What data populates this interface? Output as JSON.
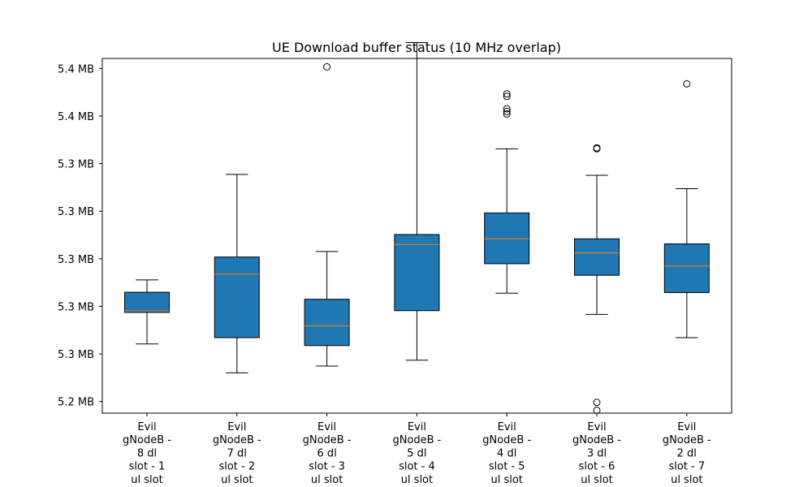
{
  "chart_data": {
    "type": "box",
    "title": "UE Download buffer status (10 MHz overlap)",
    "xlabel": "",
    "ylabel": "",
    "ylim": [
      5.2127,
      5.4363
    ],
    "grid": false,
    "y_ticks": [
      {
        "value": 5.22,
        "label": "5.2 MB"
      },
      {
        "value": 5.25,
        "label": "5.3 MB"
      },
      {
        "value": 5.28,
        "label": "5.3 MB"
      },
      {
        "value": 5.31,
        "label": "5.3 MB"
      },
      {
        "value": 5.34,
        "label": "5.3 MB"
      },
      {
        "value": 5.37,
        "label": "5.3 MB"
      },
      {
        "value": 5.4,
        "label": "5.4 MB"
      },
      {
        "value": 5.43,
        "label": "5.4 MB"
      }
    ],
    "categories": [
      [
        "Evil",
        "gNodeB -",
        "8 dl",
        "slot - 1",
        "ul slot"
      ],
      [
        "Evil",
        "gNodeB -",
        "7 dl",
        "slot - 2",
        "ul slot"
      ],
      [
        "Evil",
        "gNodeB -",
        "6 dl",
        "slot - 3",
        "ul slot"
      ],
      [
        "Evil",
        "gNodeB -",
        "5 dl",
        "slot - 4",
        "ul slot"
      ],
      [
        "Evil",
        "gNodeB -",
        "4 dl",
        "slot - 5",
        "ul slot"
      ],
      [
        "Evil",
        "gNodeB -",
        "3 dl",
        "slot - 6",
        "ul slot"
      ],
      [
        "Evil",
        "gNodeB -",
        "2 dl",
        "slot - 7",
        "ul slot"
      ]
    ],
    "boxes": [
      {
        "whisker_low": 5.2563,
        "q1": 5.2762,
        "median": 5.2772,
        "q3": 5.2889,
        "whisker_high": 5.2967,
        "outliers": []
      },
      {
        "whisker_low": 5.2381,
        "q1": 5.2603,
        "median": 5.3003,
        "q3": 5.3111,
        "whisker_high": 5.3632,
        "outliers": []
      },
      {
        "whisker_low": 5.2424,
        "q1": 5.2553,
        "median": 5.2677,
        "q3": 5.2845,
        "whisker_high": 5.3146,
        "outliers": [
          5.431
        ]
      },
      {
        "whisker_low": 5.2461,
        "q1": 5.2773,
        "median": 5.319,
        "q3": 5.3253,
        "whisker_high": 5.4463,
        "outliers": []
      },
      {
        "whisker_low": 5.2883,
        "q1": 5.3069,
        "median": 5.3226,
        "q3": 5.3389,
        "whisker_high": 5.3793,
        "outliers": [
          5.414,
          5.4124,
          5.4046,
          5.4029,
          5.4013
        ]
      },
      {
        "whisker_low": 5.2749,
        "q1": 5.2996,
        "median": 5.3137,
        "q3": 5.3226,
        "whisker_high": 5.3626,
        "outliers": [
          5.3799,
          5.3794,
          5.2145,
          5.2195
        ]
      },
      {
        "whisker_low": 5.2603,
        "q1": 5.2887,
        "median": 5.3054,
        "q3": 5.3194,
        "whisker_high": 5.3542,
        "outliers": [
          5.4203
        ]
      }
    ],
    "colors": {
      "box_fill": "#1f77b4",
      "median": "#ff7f0e",
      "line": "#000000"
    }
  }
}
